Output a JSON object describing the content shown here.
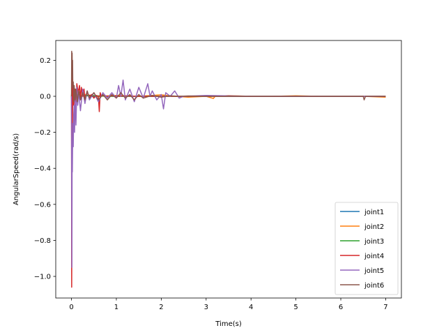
{
  "chart_data": {
    "type": "line",
    "title": "",
    "xlabel": "Time(s)",
    "ylabel": "AngularSpeed(rad/s)",
    "xlim": [
      -0.35,
      7.35
    ],
    "ylim": [
      -1.12,
      0.31
    ],
    "xticks": [
      0,
      1,
      2,
      3,
      4,
      5,
      6,
      7
    ],
    "xtick_labels": [
      "0",
      "1",
      "2",
      "3",
      "4",
      "5",
      "6",
      "7"
    ],
    "yticks": [
      0.2,
      0.0,
      -0.2,
      -0.4,
      -0.6,
      -0.8,
      -1.0
    ],
    "ytick_labels": [
      "0.2",
      "0.0",
      "−0.2",
      "−0.4",
      "−0.6",
      "−0.8",
      "−1.0"
    ],
    "grid": false,
    "legend_position": "lower-right",
    "series": [
      {
        "name": "joint1",
        "color": "#1f77b4",
        "x": [
          0,
          0.01,
          0.02,
          0.03,
          0.04,
          0.05,
          0.08,
          0.12,
          0.2,
          0.3,
          0.5,
          0.7,
          1.0,
          1.5,
          2.0,
          2.5,
          3.0,
          4.0,
          5.0,
          6.0,
          7.0
        ],
        "y": [
          0.0,
          0.05,
          -0.05,
          0.03,
          -0.02,
          0.01,
          -0.01,
          0.01,
          0.0,
          0.005,
          -0.003,
          0.002,
          0.0,
          0.0,
          0.0,
          0.0,
          0.0,
          0.0,
          0.0,
          0.0,
          0.0
        ]
      },
      {
        "name": "joint2",
        "color": "#ff7f0e",
        "x": [
          0,
          0.01,
          0.02,
          0.04,
          0.06,
          0.1,
          0.15,
          0.3,
          0.6,
          1.0,
          1.5,
          2.0,
          2.3,
          2.6,
          3.0,
          3.16,
          3.2,
          3.5,
          4.0,
          4.5,
          5.0,
          5.5,
          6.0,
          6.5,
          7.0
        ],
        "y": [
          0.0,
          0.04,
          -0.06,
          0.03,
          -0.02,
          0.02,
          -0.01,
          0.01,
          0.0,
          0.005,
          0.0,
          0.008,
          0.0,
          -0.005,
          0.0,
          -0.012,
          0.0,
          0.004,
          0.0,
          0.0,
          0.003,
          0.0,
          0.0,
          0.0,
          -0.005
        ]
      },
      {
        "name": "joint3",
        "color": "#2ca02c",
        "x": [
          0,
          0.01,
          0.02,
          0.03,
          0.05,
          0.08,
          0.12,
          0.2,
          0.4,
          0.8,
          1.5,
          2.0,
          3.0,
          4.0,
          5.0,
          6.0,
          7.0
        ],
        "y": [
          0.0,
          -0.05,
          0.04,
          -0.03,
          0.02,
          -0.01,
          0.01,
          0.0,
          0.005,
          0.0,
          0.0,
          0.0,
          0.0,
          0.0,
          0.0,
          0.0,
          0.0
        ]
      },
      {
        "name": "joint4",
        "color": "#d62728",
        "x": [
          0,
          0.005,
          0.01,
          0.015,
          0.02,
          0.03,
          0.05,
          0.08,
          0.1,
          0.12,
          0.15,
          0.18,
          0.2,
          0.22,
          0.25,
          0.28,
          0.3,
          0.35,
          0.4,
          0.45,
          0.5,
          0.55,
          0.6,
          0.62,
          0.64,
          0.66,
          0.7,
          0.8,
          0.9,
          1.0,
          1.2,
          1.5,
          2.0,
          2.5,
          3.0,
          4.0,
          5.0,
          6.0,
          7.0
        ],
        "y": [
          0.0,
          -1.06,
          -0.6,
          0.2,
          -0.2,
          0.07,
          -0.05,
          0.04,
          -0.03,
          0.07,
          0.02,
          0.06,
          -0.02,
          0.05,
          0.0,
          0.04,
          -0.02,
          0.02,
          0.0,
          0.01,
          -0.01,
          0.005,
          0.0,
          -0.085,
          0.02,
          0.0,
          0.005,
          0.0,
          0.003,
          0.0,
          0.002,
          0.0,
          0.0,
          0.0,
          0.0,
          0.0,
          0.0,
          0.0,
          0.0
        ]
      },
      {
        "name": "joint5",
        "color": "#9467bd",
        "x": [
          0,
          0.005,
          0.01,
          0.015,
          0.02,
          0.03,
          0.04,
          0.05,
          0.06,
          0.07,
          0.08,
          0.1,
          0.12,
          0.14,
          0.16,
          0.2,
          0.25,
          0.3,
          0.35,
          0.4,
          0.5,
          0.6,
          0.7,
          0.8,
          0.9,
          1.0,
          1.05,
          1.1,
          1.15,
          1.2,
          1.3,
          1.4,
          1.5,
          1.6,
          1.7,
          1.75,
          1.8,
          1.9,
          2.0,
          2.05,
          2.1,
          2.2,
          2.3,
          2.4,
          2.5,
          3.0,
          4.0,
          5.0,
          6.0,
          6.5,
          7.0
        ],
        "y": [
          0.0,
          -0.6,
          -0.95,
          -0.3,
          -0.42,
          -0.15,
          -0.28,
          -0.1,
          -0.05,
          -0.2,
          0.02,
          -0.16,
          0.05,
          -0.05,
          0.03,
          -0.08,
          0.04,
          -0.04,
          0.03,
          -0.02,
          0.02,
          -0.03,
          0.02,
          -0.01,
          0.02,
          -0.01,
          0.06,
          0.0,
          0.09,
          -0.02,
          0.04,
          -0.03,
          0.05,
          -0.01,
          0.07,
          0.0,
          0.03,
          -0.02,
          0.01,
          -0.07,
          0.02,
          0.0,
          0.03,
          -0.01,
          0.0,
          0.005,
          0.0,
          0.0,
          0.0,
          0.0,
          0.0
        ]
      },
      {
        "name": "joint6",
        "color": "#8c564b",
        "x": [
          0,
          0.005,
          0.01,
          0.015,
          0.02,
          0.025,
          0.03,
          0.04,
          0.05,
          0.06,
          0.08,
          0.1,
          0.13,
          0.16,
          0.2,
          0.25,
          0.3,
          0.35,
          0.4,
          0.5,
          0.6,
          0.7,
          0.8,
          0.9,
          1.0,
          1.1,
          1.2,
          1.3,
          1.4,
          1.5,
          1.6,
          1.8,
          2.0,
          2.2,
          2.4,
          2.6,
          3.0,
          3.5,
          4.0,
          4.5,
          5.0,
          5.5,
          6.0,
          6.5,
          6.52,
          6.55,
          7.0
        ],
        "y": [
          0.0,
          0.25,
          0.18,
          0.24,
          0.1,
          0.2,
          0.05,
          0.08,
          -0.03,
          0.06,
          -0.02,
          0.04,
          -0.03,
          0.03,
          -0.02,
          0.02,
          -0.02,
          0.03,
          -0.01,
          0.02,
          -0.02,
          0.01,
          -0.02,
          0.01,
          -0.01,
          0.02,
          -0.01,
          0.01,
          -0.02,
          0.01,
          -0.01,
          0.005,
          -0.005,
          0.003,
          0.0,
          0.002,
          0.0,
          0.0,
          0.0,
          0.0,
          0.0,
          0.0,
          0.0,
          0.0,
          -0.02,
          0.0,
          0.0
        ]
      }
    ]
  }
}
